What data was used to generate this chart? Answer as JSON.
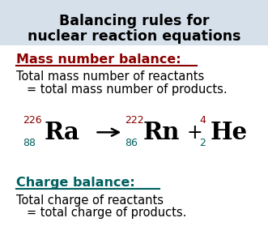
{
  "title_line1": "Balancing rules for",
  "title_line2": "nuclear reaction equations",
  "title_bg": "#d6e0ea",
  "title_color": "#000000",
  "title_fontsize": 12.5,
  "mass_label": "Mass number balance:",
  "mass_label_color": "#8b0000",
  "mass_text1": "Total mass number of reactants",
  "mass_text2": "= total mass number of products.",
  "charge_label": "Charge balance:",
  "charge_label_color": "#006060",
  "charge_text1": "Total charge of reactants",
  "charge_text2": "= total charge of products.",
  "body_color": "#000000",
  "body_fontsize": 10.5,
  "label_fontsize": 11.5,
  "bg_color": "#ffffff",
  "equation_color": "#000000",
  "superscript_color": "#8b0000",
  "subscript_color": "#006060"
}
